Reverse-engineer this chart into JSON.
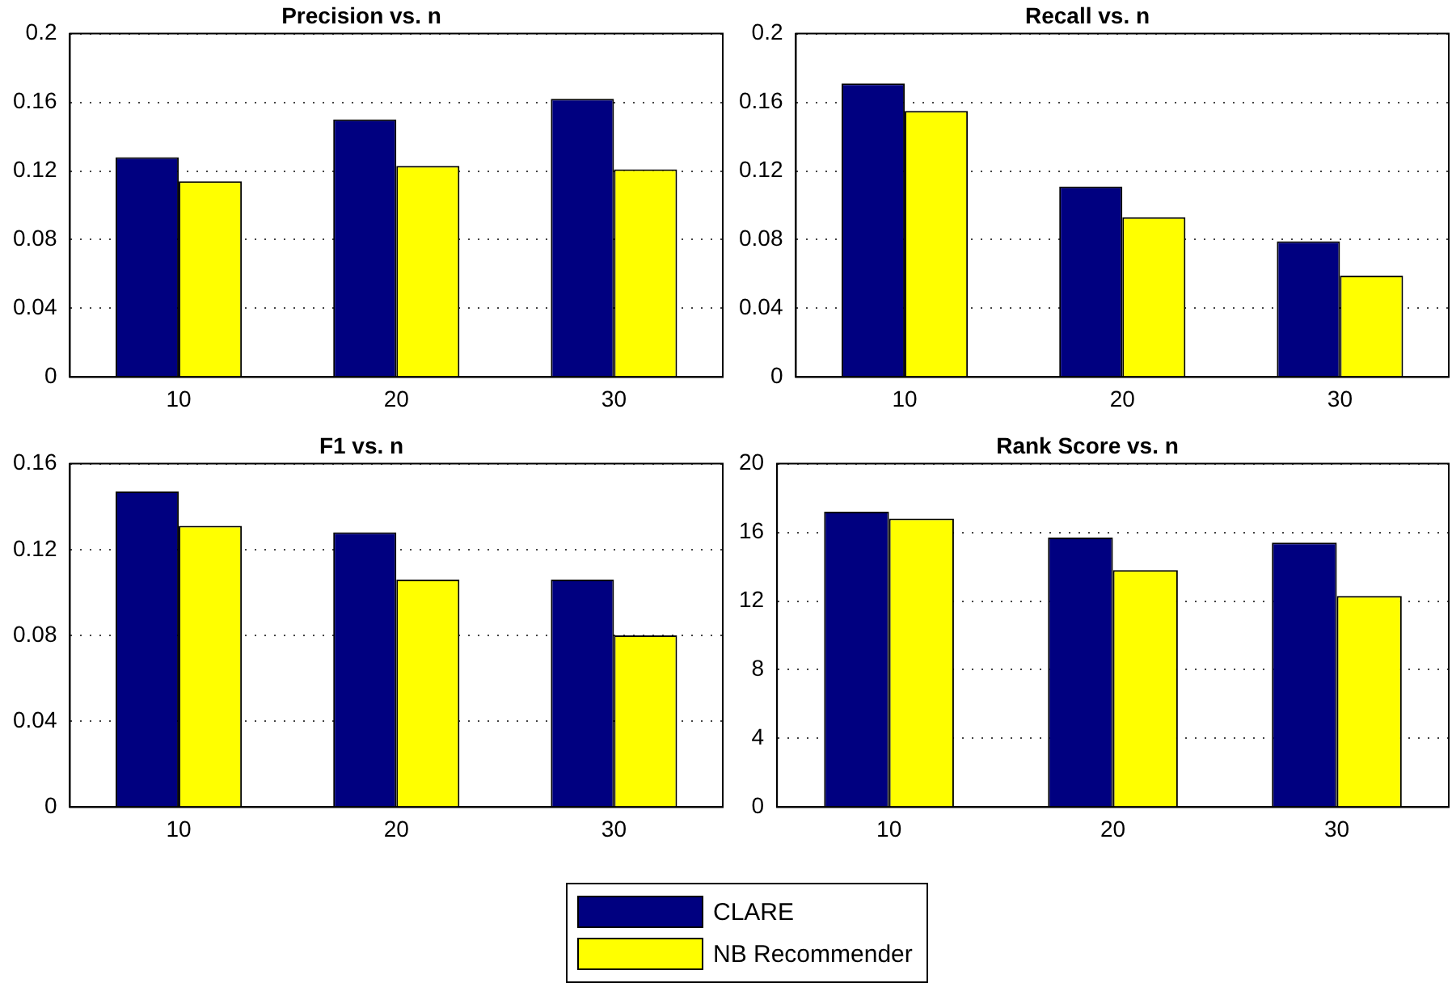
{
  "chart_data": [
    {
      "type": "bar",
      "title": "Precision vs. n",
      "categories": [
        "10",
        "20",
        "30"
      ],
      "series": [
        {
          "name": "CLARE",
          "color": "#000080",
          "values": [
            0.128,
            0.15,
            0.162
          ]
        },
        {
          "name": "NB Recommender",
          "color": "#ffff00",
          "values": [
            0.114,
            0.123,
            0.121
          ]
        }
      ],
      "ylim": [
        0,
        0.2
      ],
      "yticks": [
        0,
        0.04,
        0.08,
        0.12,
        0.16,
        0.2
      ],
      "grid": "y",
      "legend": "bottom"
    },
    {
      "type": "bar",
      "title": "Recall vs. n",
      "categories": [
        "10",
        "20",
        "30"
      ],
      "series": [
        {
          "color": "#000080",
          "values": [
            0.171,
            0.111,
            0.079
          ]
        },
        {
          "color": "#ffff00",
          "values": [
            0.155,
            0.093,
            0.059
          ]
        }
      ],
      "ylim": [
        0,
        0.2
      ],
      "yticks": [
        0,
        0.04,
        0.08,
        0.12,
        0.16,
        0.2
      ],
      "grid": "y"
    },
    {
      "type": "bar",
      "title": "F1 vs. n",
      "categories": [
        "10",
        "20",
        "30"
      ],
      "series": [
        {
          "color": "#000080",
          "values": [
            0.147,
            0.128,
            0.106
          ]
        },
        {
          "color": "#ffff00",
          "values": [
            0.131,
            0.106,
            0.08
          ]
        }
      ],
      "ylim": [
        0,
        0.16
      ],
      "yticks": [
        0,
        0.04,
        0.08,
        0.12,
        0.16
      ],
      "grid": "y"
    },
    {
      "type": "bar",
      "title": "Rank Score vs. n",
      "categories": [
        "10",
        "20",
        "30"
      ],
      "series": [
        {
          "color": "#000080",
          "values": [
            17.2,
            15.7,
            15.4
          ]
        },
        {
          "color": "#ffff00",
          "values": [
            16.8,
            13.8,
            12.3
          ]
        }
      ],
      "ylim": [
        0,
        20
      ],
      "yticks": [
        0,
        4,
        8,
        12,
        16,
        20
      ],
      "grid": "y"
    }
  ]
}
